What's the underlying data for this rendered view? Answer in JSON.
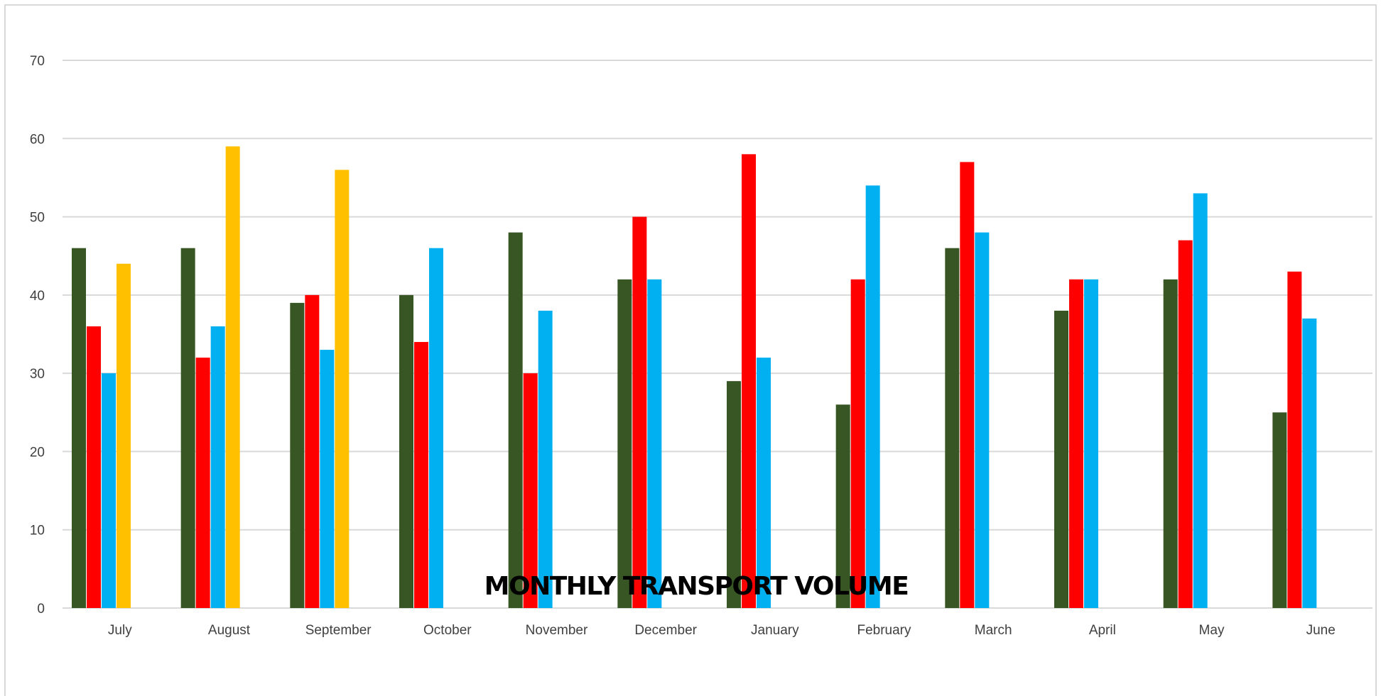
{
  "chart_data": {
    "type": "bar",
    "title": "MONTHLY TRANSPORT VOLUME",
    "xlabel": "",
    "ylabel": "",
    "ylim": [
      0,
      70
    ],
    "yticks": [
      0,
      10,
      20,
      30,
      40,
      50,
      60,
      70
    ],
    "grid": true,
    "legend": "none",
    "categories": [
      "July",
      "August",
      "September",
      "October",
      "November",
      "December",
      "January",
      "February",
      "March",
      "April",
      "May",
      "June"
    ],
    "series": [
      {
        "color": "#375623",
        "values": [
          46,
          46,
          39,
          40,
          48,
          42,
          29,
          26,
          46,
          38,
          42,
          25
        ]
      },
      {
        "color": "#ff0000",
        "values": [
          36,
          32,
          40,
          34,
          30,
          50,
          58,
          42,
          57,
          42,
          47,
          43
        ]
      },
      {
        "color": "#00b0f0",
        "values": [
          30,
          36,
          33,
          46,
          38,
          42,
          32,
          54,
          48,
          42,
          53,
          37
        ]
      },
      {
        "color": "#ffc000",
        "values": [
          44,
          59,
          56,
          null,
          null,
          null,
          null,
          null,
          null,
          null,
          null,
          null
        ]
      }
    ],
    "colors": {
      "grid": "#d9d9d9",
      "axis_text": "#404040",
      "title": "#000000"
    }
  }
}
